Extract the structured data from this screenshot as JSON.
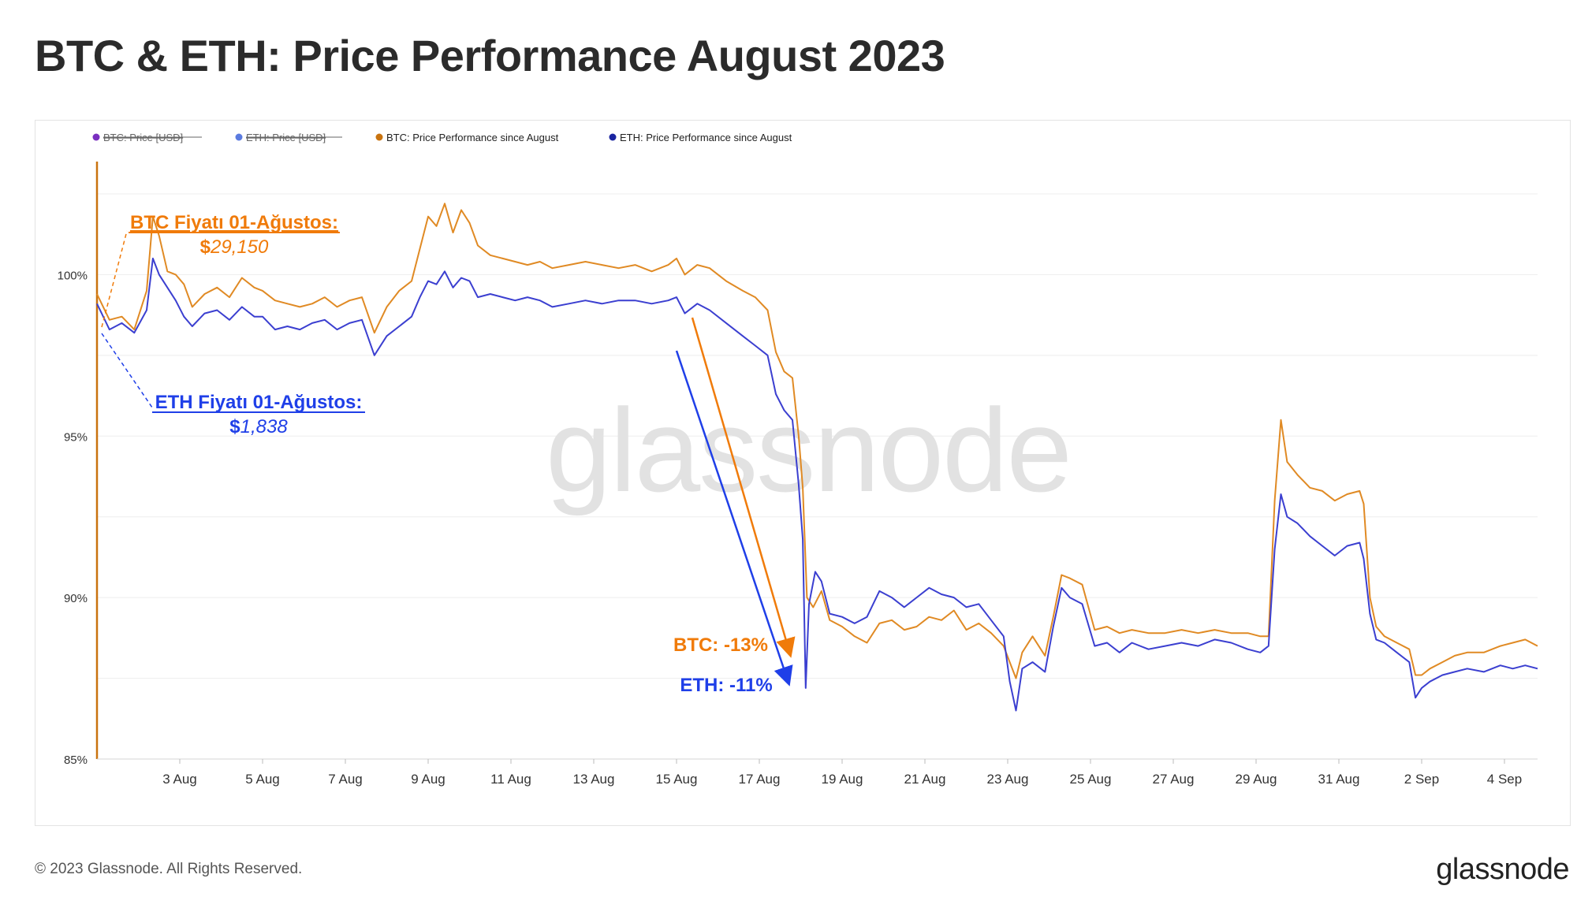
{
  "header": {
    "title": "BTC & ETH: Price Performance August 2023"
  },
  "footer": {
    "copyright": "© 2023 Glassnode. All Rights Reserved.",
    "logo": "glassnode"
  },
  "watermark": "glassnode",
  "colors": {
    "btc": "#e08a24",
    "eth": "#3b3fd0",
    "btc_legend_hidden": "#7a2fc0",
    "eth_legend_hidden": "#5b7be0",
    "btc_annotation": "#f07b0a",
    "eth_annotation": "#1f3fe8",
    "grid": "#eeeeee"
  },
  "legend": [
    {
      "label": "BTC: Price [USD]",
      "color": "#7a2fc0",
      "hidden": true
    },
    {
      "label": "ETH: Price [USD]",
      "color": "#5b7be0",
      "hidden": true
    },
    {
      "label": "BTC: Price Performance since August",
      "color": "#c9730f",
      "hidden": false
    },
    {
      "label": "ETH: Price Performance since August",
      "color": "#1a24a0",
      "hidden": false
    }
  ],
  "annotations": {
    "btc_start_title": "BTC Fiyatı 01-Ağustos:",
    "btc_start_currency": "$",
    "btc_start_value": "29,150",
    "eth_start_title": "ETH Fiyatı 01-Ağustos:",
    "eth_start_currency": "$",
    "eth_start_value": "1,838",
    "btc_drop": "BTC: -13%",
    "eth_drop": "ETH: -11%"
  },
  "chart_data": {
    "type": "line",
    "title": "BTC & ETH: Price Performance August 2023",
    "xlabel": "",
    "ylabel": "",
    "x_unit": "days since 1 Aug 2023",
    "ylim": [
      85,
      103.5
    ],
    "xlim": [
      1,
      35.8
    ],
    "y_ticks": [
      85,
      90,
      95,
      100
    ],
    "y_tick_labels": [
      "85%",
      "90%",
      "95%",
      "100%"
    ],
    "x_ticks": [
      3,
      5,
      7,
      9,
      11,
      13,
      15,
      17,
      19,
      21,
      23,
      25,
      27,
      29,
      31,
      33,
      35
    ],
    "x_tick_labels": [
      "3 Aug",
      "5 Aug",
      "7 Aug",
      "9 Aug",
      "11 Aug",
      "13 Aug",
      "15 Aug",
      "17 Aug",
      "19 Aug",
      "21 Aug",
      "23 Aug",
      "25 Aug",
      "27 Aug",
      "29 Aug",
      "31 Aug",
      "2 Sep",
      "4 Sep"
    ],
    "grid": true,
    "legend_position": "top-left",
    "series": [
      {
        "name": "BTC: Price Performance since August",
        "color": "#e08a24",
        "points": [
          [
            1.0,
            99.4
          ],
          [
            1.3,
            98.6
          ],
          [
            1.6,
            98.7
          ],
          [
            1.9,
            98.3
          ],
          [
            2.2,
            99.5
          ],
          [
            2.35,
            101.8
          ],
          [
            2.5,
            101.2
          ],
          [
            2.7,
            100.1
          ],
          [
            2.9,
            100.0
          ],
          [
            3.1,
            99.7
          ],
          [
            3.3,
            99.0
          ],
          [
            3.6,
            99.4
          ],
          [
            3.9,
            99.6
          ],
          [
            4.2,
            99.3
          ],
          [
            4.5,
            99.9
          ],
          [
            4.8,
            99.6
          ],
          [
            5.0,
            99.5
          ],
          [
            5.3,
            99.2
          ],
          [
            5.6,
            99.1
          ],
          [
            5.9,
            99.0
          ],
          [
            6.2,
            99.1
          ],
          [
            6.5,
            99.3
          ],
          [
            6.8,
            99.0
          ],
          [
            7.1,
            99.2
          ],
          [
            7.4,
            99.3
          ],
          [
            7.7,
            98.2
          ],
          [
            8.0,
            99.0
          ],
          [
            8.3,
            99.5
          ],
          [
            8.6,
            99.8
          ],
          [
            8.8,
            100.8
          ],
          [
            9.0,
            101.8
          ],
          [
            9.2,
            101.5
          ],
          [
            9.4,
            102.2
          ],
          [
            9.6,
            101.3
          ],
          [
            9.8,
            102.0
          ],
          [
            10.0,
            101.6
          ],
          [
            10.2,
            100.9
          ],
          [
            10.5,
            100.6
          ],
          [
            10.8,
            100.5
          ],
          [
            11.1,
            100.4
          ],
          [
            11.4,
            100.3
          ],
          [
            11.7,
            100.4
          ],
          [
            12.0,
            100.2
          ],
          [
            12.4,
            100.3
          ],
          [
            12.8,
            100.4
          ],
          [
            13.2,
            100.3
          ],
          [
            13.6,
            100.2
          ],
          [
            14.0,
            100.3
          ],
          [
            14.4,
            100.1
          ],
          [
            14.8,
            100.3
          ],
          [
            15.0,
            100.5
          ],
          [
            15.2,
            100.0
          ],
          [
            15.5,
            100.3
          ],
          [
            15.8,
            100.2
          ],
          [
            16.2,
            99.8
          ],
          [
            16.6,
            99.5
          ],
          [
            16.9,
            99.3
          ],
          [
            17.2,
            98.9
          ],
          [
            17.4,
            97.6
          ],
          [
            17.6,
            97.0
          ],
          [
            17.8,
            96.8
          ],
          [
            17.95,
            95.0
          ],
          [
            18.05,
            93.4
          ],
          [
            18.15,
            90.0
          ],
          [
            18.3,
            89.7
          ],
          [
            18.5,
            90.2
          ],
          [
            18.7,
            89.3
          ],
          [
            19.0,
            89.1
          ],
          [
            19.3,
            88.8
          ],
          [
            19.6,
            88.6
          ],
          [
            19.9,
            89.2
          ],
          [
            20.2,
            89.3
          ],
          [
            20.5,
            89.0
          ],
          [
            20.8,
            89.1
          ],
          [
            21.1,
            89.4
          ],
          [
            21.4,
            89.3
          ],
          [
            21.7,
            89.6
          ],
          [
            22.0,
            89.0
          ],
          [
            22.3,
            89.2
          ],
          [
            22.6,
            88.9
          ],
          [
            22.9,
            88.5
          ],
          [
            23.05,
            88.0
          ],
          [
            23.2,
            87.5
          ],
          [
            23.35,
            88.3
          ],
          [
            23.6,
            88.8
          ],
          [
            23.9,
            88.2
          ],
          [
            24.1,
            89.4
          ],
          [
            24.3,
            90.7
          ],
          [
            24.5,
            90.6
          ],
          [
            24.8,
            90.4
          ],
          [
            25.1,
            89.0
          ],
          [
            25.4,
            89.1
          ],
          [
            25.7,
            88.9
          ],
          [
            26.0,
            89.0
          ],
          [
            26.4,
            88.9
          ],
          [
            26.8,
            88.9
          ],
          [
            27.2,
            89.0
          ],
          [
            27.6,
            88.9
          ],
          [
            28.0,
            89.0
          ],
          [
            28.4,
            88.9
          ],
          [
            28.8,
            88.9
          ],
          [
            29.1,
            88.8
          ],
          [
            29.3,
            88.8
          ],
          [
            29.45,
            93.0
          ],
          [
            29.6,
            95.5
          ],
          [
            29.75,
            94.2
          ],
          [
            30.0,
            93.8
          ],
          [
            30.3,
            93.4
          ],
          [
            30.6,
            93.3
          ],
          [
            30.9,
            93.0
          ],
          [
            31.2,
            93.2
          ],
          [
            31.5,
            93.3
          ],
          [
            31.6,
            92.9
          ],
          [
            31.75,
            90.0
          ],
          [
            31.9,
            89.1
          ],
          [
            32.1,
            88.8
          ],
          [
            32.4,
            88.6
          ],
          [
            32.7,
            88.4
          ],
          [
            32.85,
            87.6
          ],
          [
            33.0,
            87.6
          ],
          [
            33.2,
            87.8
          ],
          [
            33.5,
            88.0
          ],
          [
            33.8,
            88.2
          ],
          [
            34.1,
            88.3
          ],
          [
            34.5,
            88.3
          ],
          [
            34.9,
            88.5
          ],
          [
            35.2,
            88.6
          ],
          [
            35.5,
            88.7
          ],
          [
            35.8,
            88.5
          ]
        ]
      },
      {
        "name": "ETH: Price Performance since August",
        "color": "#3b3fd0",
        "points": [
          [
            1.0,
            99.1
          ],
          [
            1.3,
            98.3
          ],
          [
            1.6,
            98.5
          ],
          [
            1.9,
            98.2
          ],
          [
            2.2,
            98.9
          ],
          [
            2.35,
            100.5
          ],
          [
            2.5,
            100.0
          ],
          [
            2.7,
            99.6
          ],
          [
            2.9,
            99.2
          ],
          [
            3.1,
            98.7
          ],
          [
            3.3,
            98.4
          ],
          [
            3.6,
            98.8
          ],
          [
            3.9,
            98.9
          ],
          [
            4.2,
            98.6
          ],
          [
            4.5,
            99.0
          ],
          [
            4.8,
            98.7
          ],
          [
            5.0,
            98.7
          ],
          [
            5.3,
            98.3
          ],
          [
            5.6,
            98.4
          ],
          [
            5.9,
            98.3
          ],
          [
            6.2,
            98.5
          ],
          [
            6.5,
            98.6
          ],
          [
            6.8,
            98.3
          ],
          [
            7.1,
            98.5
          ],
          [
            7.4,
            98.6
          ],
          [
            7.7,
            97.5
          ],
          [
            8.0,
            98.1
          ],
          [
            8.3,
            98.4
          ],
          [
            8.6,
            98.7
          ],
          [
            8.8,
            99.3
          ],
          [
            9.0,
            99.8
          ],
          [
            9.2,
            99.7
          ],
          [
            9.4,
            100.1
          ],
          [
            9.6,
            99.6
          ],
          [
            9.8,
            99.9
          ],
          [
            10.0,
            99.8
          ],
          [
            10.2,
            99.3
          ],
          [
            10.5,
            99.4
          ],
          [
            10.8,
            99.3
          ],
          [
            11.1,
            99.2
          ],
          [
            11.4,
            99.3
          ],
          [
            11.7,
            99.2
          ],
          [
            12.0,
            99.0
          ],
          [
            12.4,
            99.1
          ],
          [
            12.8,
            99.2
          ],
          [
            13.2,
            99.1
          ],
          [
            13.6,
            99.2
          ],
          [
            14.0,
            99.2
          ],
          [
            14.4,
            99.1
          ],
          [
            14.8,
            99.2
          ],
          [
            15.0,
            99.3
          ],
          [
            15.2,
            98.8
          ],
          [
            15.5,
            99.1
          ],
          [
            15.8,
            98.9
          ],
          [
            16.2,
            98.5
          ],
          [
            16.6,
            98.1
          ],
          [
            16.9,
            97.8
          ],
          [
            17.2,
            97.5
          ],
          [
            17.4,
            96.3
          ],
          [
            17.6,
            95.8
          ],
          [
            17.8,
            95.5
          ],
          [
            17.95,
            93.5
          ],
          [
            18.05,
            91.8
          ],
          [
            18.12,
            87.2
          ],
          [
            18.2,
            89.8
          ],
          [
            18.35,
            90.8
          ],
          [
            18.5,
            90.5
          ],
          [
            18.7,
            89.5
          ],
          [
            19.0,
            89.4
          ],
          [
            19.3,
            89.2
          ],
          [
            19.6,
            89.4
          ],
          [
            19.9,
            90.2
          ],
          [
            20.2,
            90.0
          ],
          [
            20.5,
            89.7
          ],
          [
            20.8,
            90.0
          ],
          [
            21.1,
            90.3
          ],
          [
            21.4,
            90.1
          ],
          [
            21.7,
            90.0
          ],
          [
            22.0,
            89.7
          ],
          [
            22.3,
            89.8
          ],
          [
            22.6,
            89.3
          ],
          [
            22.9,
            88.8
          ],
          [
            23.05,
            87.4
          ],
          [
            23.2,
            86.5
          ],
          [
            23.35,
            87.8
          ],
          [
            23.6,
            88.0
          ],
          [
            23.9,
            87.7
          ],
          [
            24.1,
            89.1
          ],
          [
            24.3,
            90.3
          ],
          [
            24.5,
            90.0
          ],
          [
            24.8,
            89.8
          ],
          [
            25.1,
            88.5
          ],
          [
            25.4,
            88.6
          ],
          [
            25.7,
            88.3
          ],
          [
            26.0,
            88.6
          ],
          [
            26.4,
            88.4
          ],
          [
            26.8,
            88.5
          ],
          [
            27.2,
            88.6
          ],
          [
            27.6,
            88.5
          ],
          [
            28.0,
            88.7
          ],
          [
            28.4,
            88.6
          ],
          [
            28.8,
            88.4
          ],
          [
            29.1,
            88.3
          ],
          [
            29.3,
            88.5
          ],
          [
            29.45,
            91.5
          ],
          [
            29.6,
            93.2
          ],
          [
            29.75,
            92.5
          ],
          [
            30.0,
            92.3
          ],
          [
            30.3,
            91.9
          ],
          [
            30.6,
            91.6
          ],
          [
            30.9,
            91.3
          ],
          [
            31.2,
            91.6
          ],
          [
            31.5,
            91.7
          ],
          [
            31.6,
            91.2
          ],
          [
            31.75,
            89.5
          ],
          [
            31.9,
            88.7
          ],
          [
            32.1,
            88.6
          ],
          [
            32.4,
            88.3
          ],
          [
            32.7,
            88.0
          ],
          [
            32.85,
            86.9
          ],
          [
            33.0,
            87.2
          ],
          [
            33.2,
            87.4
          ],
          [
            33.5,
            87.6
          ],
          [
            33.8,
            87.7
          ],
          [
            34.1,
            87.8
          ],
          [
            34.5,
            87.7
          ],
          [
            34.9,
            87.9
          ],
          [
            35.2,
            87.8
          ],
          [
            35.5,
            87.9
          ],
          [
            35.8,
            87.8
          ]
        ]
      }
    ]
  }
}
